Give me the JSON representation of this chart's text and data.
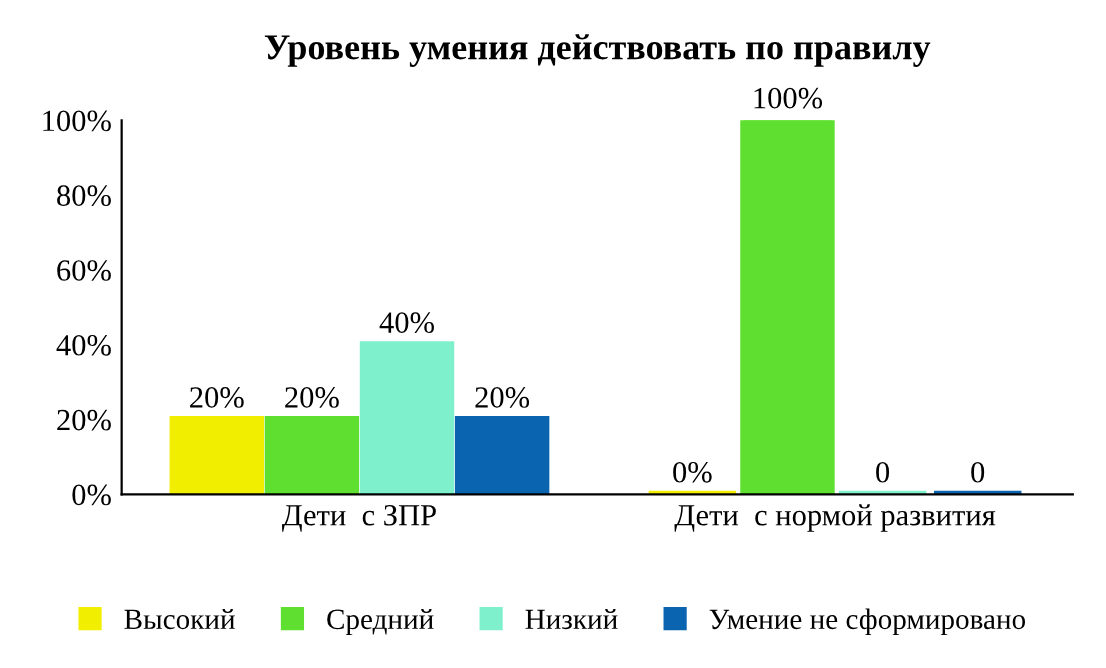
{
  "chart_data": {
    "type": "bar",
    "title": "Уровень умения действовать по правилу",
    "categories": [
      "Дети  с ЗПР",
      "Дети  с нормой развития"
    ],
    "series": [
      {
        "name": "Высокий",
        "color": "#f2ee00",
        "values": [
          20,
          0
        ],
        "value_labels": [
          "20%",
          "0%"
        ]
      },
      {
        "name": "Средний",
        "color": "#5fe030",
        "values": [
          20,
          100
        ],
        "value_labels": [
          "20%",
          "100%"
        ]
      },
      {
        "name": "Низкий",
        "color": "#7ff0cc",
        "values": [
          40,
          0
        ],
        "value_labels": [
          "40%",
          "0"
        ]
      },
      {
        "name": "Умение не сформировано",
        "color": "#0a64b0",
        "values": [
          20,
          0
        ],
        "value_labels": [
          "20%",
          "0"
        ]
      }
    ],
    "ylim": [
      0,
      100
    ],
    "yticks": [
      {
        "value": 0,
        "label": "0%"
      },
      {
        "value": 20,
        "label": "20%"
      },
      {
        "value": 40,
        "label": "40%"
      },
      {
        "value": 60,
        "label": "60%"
      },
      {
        "value": 80,
        "label": "80%"
      },
      {
        "value": 100,
        "label": "100%"
      }
    ],
    "grid": false,
    "legend": "bottom"
  }
}
